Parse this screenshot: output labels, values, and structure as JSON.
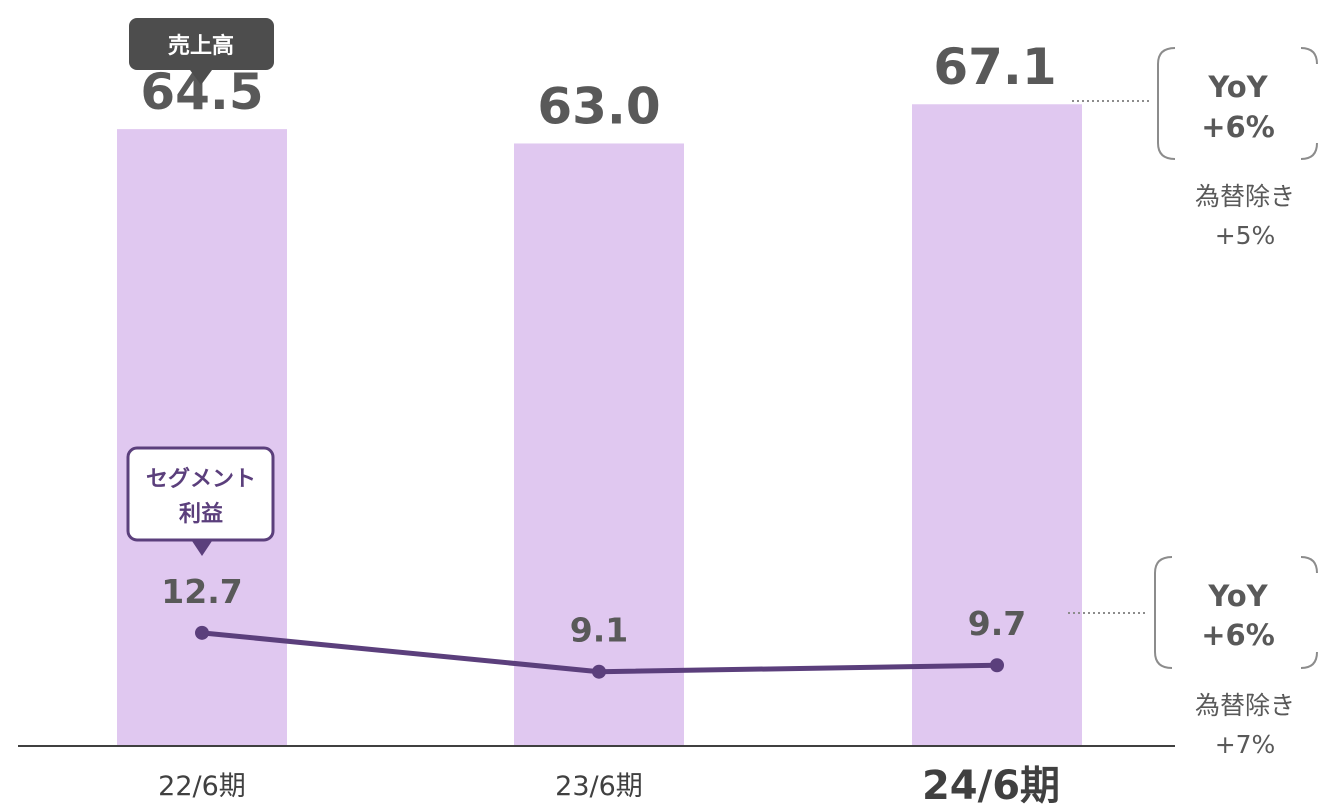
{
  "chart_data": {
    "type": "bar",
    "categories": [
      "22/6期",
      "23/6期",
      "24/6期"
    ],
    "highlight_category_index": 2,
    "series": [
      {
        "name": "売上高",
        "type": "bar",
        "values": [
          64.5,
          63.0,
          67.1
        ],
        "color": "#e0c8f0"
      },
      {
        "name": "セグメント利益",
        "type": "line",
        "values": [
          12.7,
          9.1,
          9.7
        ],
        "color": "#5b3f7c"
      }
    ],
    "ylim": [
      0,
      78
    ]
  },
  "callouts": {
    "sales": "売上高",
    "segment_line1": "セグメント",
    "segment_line2": "利益"
  },
  "annotations": {
    "sales_yoy": {
      "label": "YoY",
      "value": "+6%",
      "fx_line1": "為替除き",
      "fx_line2": "+5%"
    },
    "profit_yoy": {
      "label": "YoY",
      "value": "+6%",
      "fx_line1": "為替除き",
      "fx_line2": "+7%"
    }
  },
  "colors": {
    "bar": "#e0c8f0",
    "line": "#5b3f7c",
    "callout_dark": "#4d4d4d",
    "callout_purple_border": "#5b3f7c",
    "text": "#595959"
  }
}
